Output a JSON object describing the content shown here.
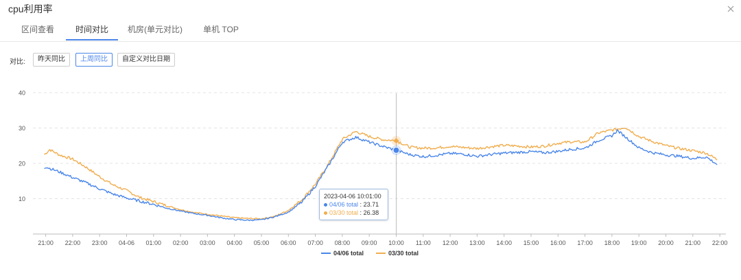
{
  "window": {
    "title": "cpu利用率",
    "close_icon": "close-icon"
  },
  "tabs": [
    {
      "label": "区间查看",
      "active": false
    },
    {
      "label": "时间对比",
      "active": true
    },
    {
      "label": "机房(单元对比)",
      "active": false
    },
    {
      "label": "单机 TOP",
      "active": false
    }
  ],
  "compare": {
    "label": "对比:",
    "buttons": [
      {
        "label": "昨天同比",
        "active": false
      },
      {
        "label": "上周同比",
        "active": true
      },
      {
        "label": "自定义对比日期",
        "active": false
      }
    ]
  },
  "tooltip": {
    "time": "2023-04-06 10:01:00",
    "rows": [
      {
        "name": "04/06 total",
        "value": "23.71",
        "color": "#4a86e8"
      },
      {
        "name": "03/30 total",
        "value": "26.38",
        "color": "#f0ad4e"
      }
    ]
  },
  "chart_data": {
    "type": "line",
    "x": [
      "21:00",
      "22:00",
      "23:00",
      "04-06",
      "01:00",
      "02:00",
      "03:00",
      "04:00",
      "05:00",
      "06:00",
      "07:00",
      "08:00",
      "09:00",
      "10:00",
      "11:00",
      "12:00",
      "13:00",
      "14:00",
      "15:00",
      "16:00",
      "17:00",
      "18:00",
      "19:00",
      "20:00",
      "21:00",
      "22:00"
    ],
    "ylim": [
      0,
      40
    ],
    "yticks": [
      "10",
      "20",
      "30",
      "40"
    ],
    "grid": true,
    "legend_position": "bottom",
    "series": [
      {
        "name": "04/06 total",
        "color": "#4a86e8",
        "points": [
          [
            -0.05,
            18.8
          ],
          [
            0,
            19.0
          ],
          [
            0.5,
            17.6
          ],
          [
            1,
            16.0
          ],
          [
            1.5,
            14.5
          ],
          [
            2,
            12.8
          ],
          [
            2.5,
            11.3
          ],
          [
            3,
            10.2
          ],
          [
            3.5,
            9.3
          ],
          [
            4,
            8.4
          ],
          [
            4.5,
            7.3
          ],
          [
            5,
            6.5
          ],
          [
            5.5,
            5.8
          ],
          [
            6,
            5.3
          ],
          [
            6.5,
            4.6
          ],
          [
            7,
            4.1
          ],
          [
            7.5,
            3.9
          ],
          [
            8,
            4.0
          ],
          [
            8.5,
            4.9
          ],
          [
            9,
            6.2
          ],
          [
            9.5,
            9.0
          ],
          [
            10,
            13.5
          ],
          [
            10.5,
            19.5
          ],
          [
            11,
            26.0
          ],
          [
            11.5,
            27.4
          ],
          [
            12,
            26.0
          ],
          [
            12.5,
            24.8
          ],
          [
            13,
            23.7
          ],
          [
            13.5,
            22.5
          ],
          [
            14,
            21.9
          ],
          [
            14.5,
            22.3
          ],
          [
            15,
            22.8
          ],
          [
            15.5,
            22.6
          ],
          [
            16,
            22.0
          ],
          [
            16.5,
            22.5
          ],
          [
            17,
            22.9
          ],
          [
            17.5,
            23.1
          ],
          [
            18,
            23.3
          ],
          [
            18.5,
            23.0
          ],
          [
            19,
            23.4
          ],
          [
            19.5,
            24.0
          ],
          [
            20,
            24.3
          ],
          [
            20.5,
            26.5
          ],
          [
            21,
            27.8
          ],
          [
            21.2,
            29.3
          ],
          [
            21.5,
            27.5
          ],
          [
            22,
            24.4
          ],
          [
            22.5,
            23.0
          ],
          [
            23,
            22.4
          ],
          [
            23.5,
            22.0
          ],
          [
            24,
            21.4
          ],
          [
            24.5,
            21.8
          ],
          [
            24.9,
            19.7
          ]
        ]
      },
      {
        "name": "03/30 total",
        "color": "#f0ad4e",
        "points": [
          [
            -0.05,
            22.5
          ],
          [
            0,
            22.8
          ],
          [
            0.15,
            23.9
          ],
          [
            0.5,
            22.4
          ],
          [
            1,
            21.2
          ],
          [
            1.5,
            18.9
          ],
          [
            2,
            16.2
          ],
          [
            2.5,
            13.9
          ],
          [
            3,
            12.3
          ],
          [
            3.5,
            10.3
          ],
          [
            4,
            9.2
          ],
          [
            4.5,
            8.0
          ],
          [
            5,
            6.9
          ],
          [
            5.5,
            6.1
          ],
          [
            6,
            5.6
          ],
          [
            6.5,
            5.1
          ],
          [
            7,
            4.6
          ],
          [
            7.5,
            4.4
          ],
          [
            8,
            4.3
          ],
          [
            8.5,
            5.0
          ],
          [
            9,
            6.7
          ],
          [
            9.5,
            9.7
          ],
          [
            10,
            14.1
          ],
          [
            10.5,
            20.0
          ],
          [
            11,
            26.8
          ],
          [
            11.5,
            29.0
          ],
          [
            12,
            27.6
          ],
          [
            12.5,
            26.7
          ],
          [
            13,
            26.4
          ],
          [
            13.5,
            24.6
          ],
          [
            14,
            24.3
          ],
          [
            14.5,
            24.4
          ],
          [
            15,
            24.8
          ],
          [
            15.5,
            24.5
          ],
          [
            16,
            24.2
          ],
          [
            16.5,
            24.7
          ],
          [
            17,
            25.1
          ],
          [
            17.5,
            24.9
          ],
          [
            18,
            24.6
          ],
          [
            18.5,
            24.9
          ],
          [
            19,
            25.7
          ],
          [
            19.5,
            26.1
          ],
          [
            20,
            26.0
          ],
          [
            20.5,
            28.6
          ],
          [
            21,
            29.4
          ],
          [
            21.5,
            30.2
          ],
          [
            22,
            27.6
          ],
          [
            22.5,
            26.2
          ],
          [
            23,
            25.0
          ],
          [
            23.5,
            24.2
          ],
          [
            24,
            23.6
          ],
          [
            24.5,
            22.9
          ],
          [
            24.9,
            21.1
          ]
        ]
      }
    ],
    "crosshair_at": "10:00"
  }
}
